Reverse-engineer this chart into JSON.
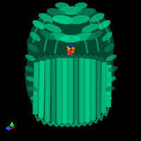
{
  "background_color": "#000000",
  "pc": "#00b87a",
  "pcd": "#007a52",
  "pcl": "#00d490",
  "pc2": "#009966",
  "figsize": [
    2.0,
    2.0
  ],
  "dpi": 100,
  "axis_x_color": "#3355ff",
  "axis_y_color": "#00ee00",
  "axis_z_color": "#dd0000"
}
